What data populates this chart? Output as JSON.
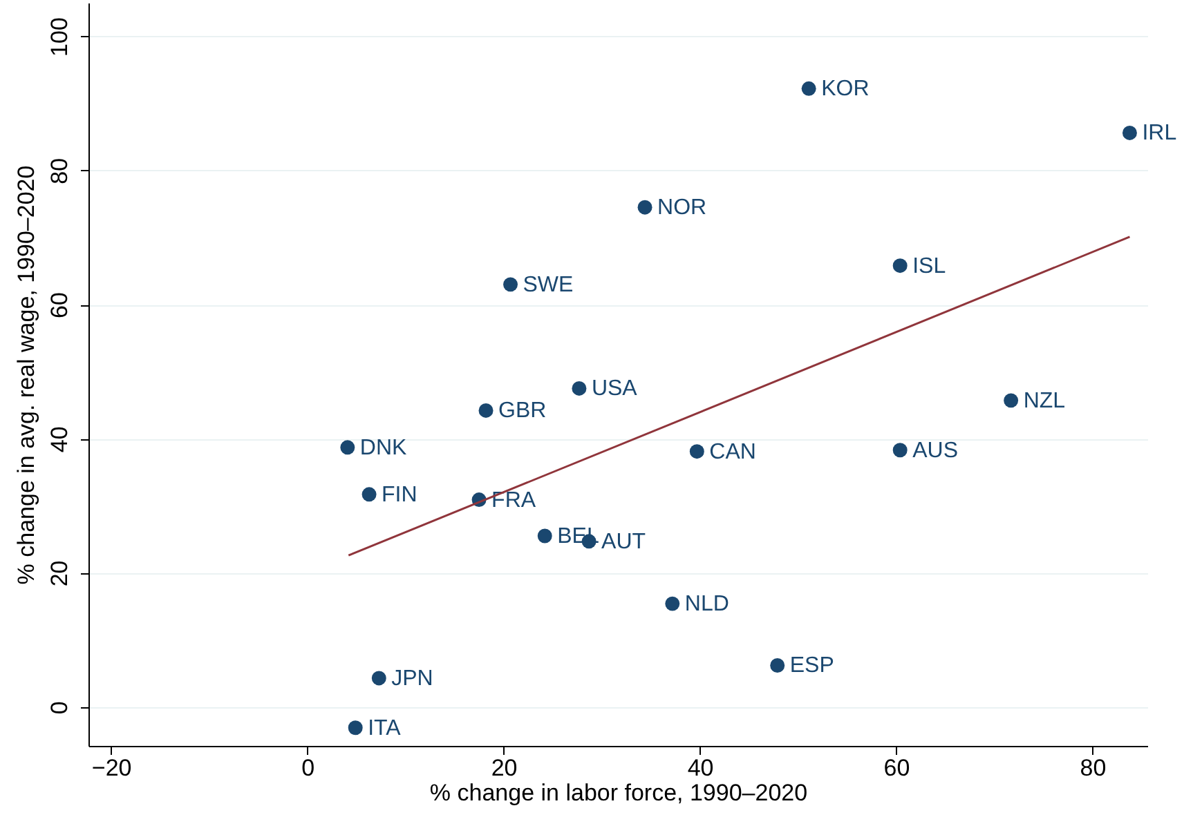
{
  "chart_data": {
    "type": "scatter",
    "xlabel": "% change in labor force, 1990–2020",
    "ylabel": "% change in avg. real wage, 1990–2020",
    "xlim": [
      -22.3,
      85.6
    ],
    "ylim": [
      -5.8,
      105
    ],
    "xticks": [
      {
        "value": -20,
        "label": "−20"
      },
      0,
      20,
      40,
      60,
      80
    ],
    "yticks": [
      0,
      20,
      40,
      60,
      80,
      100
    ],
    "grid": "y",
    "series": [
      {
        "marker": "circle",
        "color": "#1a476f",
        "x": [
          51.1,
          83.8,
          34.4,
          60.4,
          20.7,
          27.7,
          18.2,
          71.7,
          4.1,
          39.7,
          60.4,
          6.3,
          17.5,
          24.2,
          28.7,
          37.2,
          47.9,
          7.3,
          4.9
        ],
        "values": [
          92.2,
          85.6,
          74.5,
          65.8,
          63.0,
          47.5,
          44.2,
          45.7,
          38.7,
          38.1,
          38.3,
          31.7,
          30.9,
          25.5,
          24.7,
          15.4,
          6.2,
          4.3,
          -3.1
        ],
        "value_labels": [
          "KOR",
          "IRL",
          "NOR",
          "ISL",
          "SWE",
          "USA",
          "GBR",
          "NZL",
          "DNK",
          "CAN",
          "AUS",
          "FIN",
          "FRA",
          "BEL",
          "AUT",
          "NLD",
          "ESP",
          "JPN",
          "ITA"
        ]
      },
      {
        "type": "line",
        "color": "#90353b",
        "x": [
          4.2,
          83.8
        ],
        "values": [
          22.6,
          70.1
        ]
      }
    ]
  }
}
